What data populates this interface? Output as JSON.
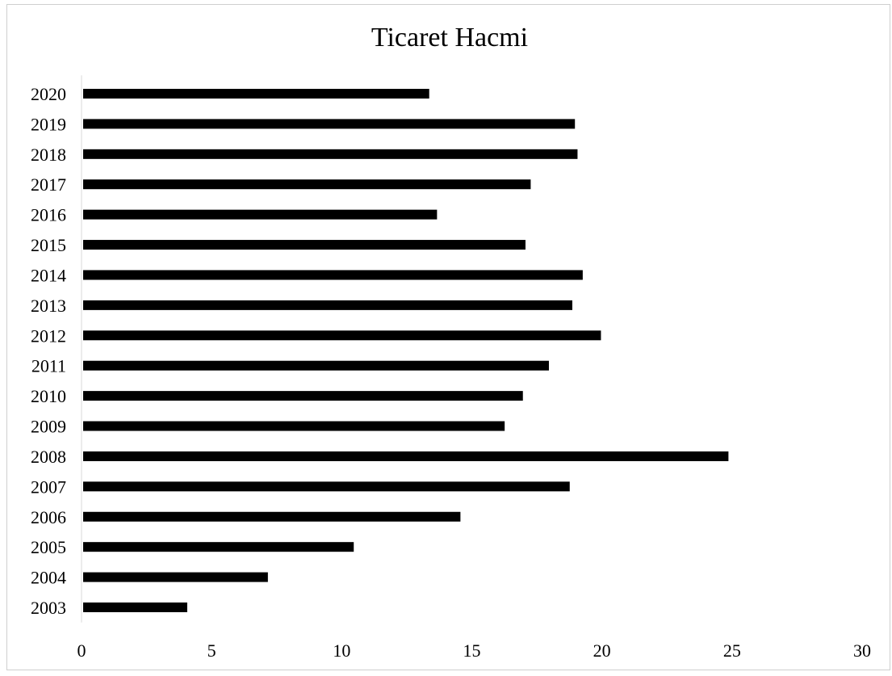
{
  "chart_data": {
    "type": "bar",
    "orientation": "horizontal",
    "title": "Ticaret Hacmi",
    "xlabel": "",
    "ylabel": "",
    "categories": [
      "2003",
      "2004",
      "2005",
      "2006",
      "2007",
      "2008",
      "2009",
      "2010",
      "2011",
      "2012",
      "2013",
      "2014",
      "2015",
      "2016",
      "2017",
      "2018",
      "2019",
      "2020"
    ],
    "values": [
      4.0,
      7.1,
      10.4,
      14.5,
      18.7,
      24.8,
      16.2,
      16.9,
      17.9,
      19.9,
      18.8,
      19.2,
      17.0,
      13.6,
      17.2,
      19.0,
      18.9,
      13.3
    ],
    "xlim": [
      0,
      30
    ],
    "xticks": [
      "0",
      "5",
      "10",
      "15",
      "20",
      "25",
      "30"
    ],
    "grid": false,
    "legend": "none",
    "bar_color": "#000000"
  }
}
